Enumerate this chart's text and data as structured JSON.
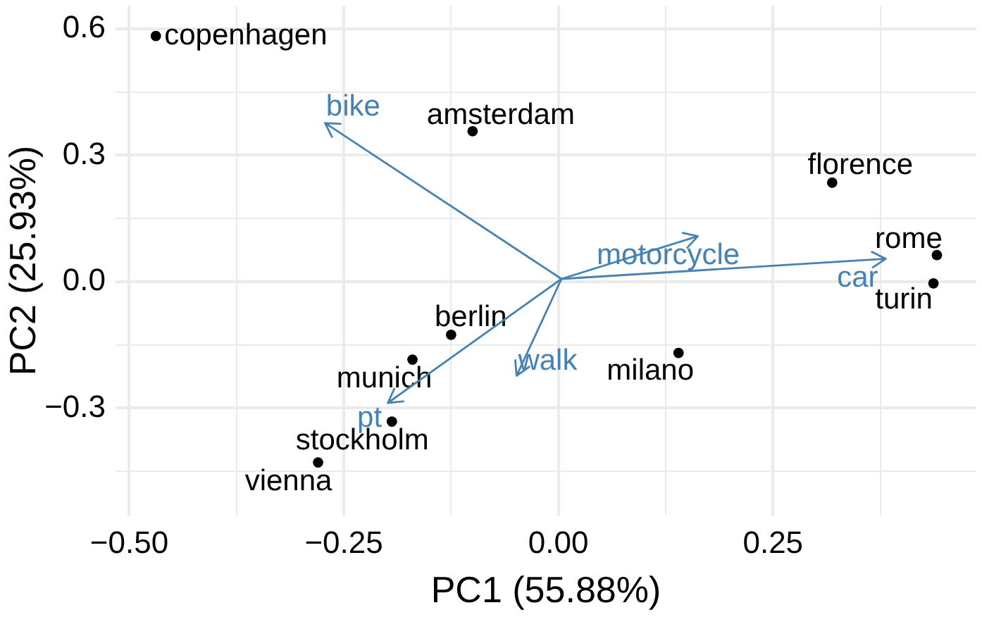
{
  "chart_data": {
    "type": "scatter",
    "xlabel": "PC1 (55.88%)",
    "ylabel": "PC2 (25.93%)",
    "xlim": [
      -0.516,
      0.487
    ],
    "ylim": [
      -0.555,
      0.655
    ],
    "xticks": [
      {
        "value": -0.5,
        "label": "−0.50"
      },
      {
        "value": -0.375,
        "label": null
      },
      {
        "value": -0.25,
        "label": "−0.25"
      },
      {
        "value": -0.125,
        "label": null
      },
      {
        "value": 0,
        "label": "0.00"
      },
      {
        "value": 0.125,
        "label": null
      },
      {
        "value": 0.25,
        "label": "0.25"
      },
      {
        "value": 0.375,
        "label": null
      }
    ],
    "yticks": [
      {
        "value": -0.45,
        "label": null
      },
      {
        "value": -0.3,
        "label": "−0.3"
      },
      {
        "value": -0.15,
        "label": null
      },
      {
        "value": 0,
        "label": "0.0"
      },
      {
        "value": 0.15,
        "label": null
      },
      {
        "value": 0.3,
        "label": "0.3"
      },
      {
        "value": 0.45,
        "label": null
      },
      {
        "value": 0.6,
        "label": "0.6"
      }
    ],
    "grid": true,
    "legend": false,
    "marker": "circle",
    "series": [
      {
        "color": "#000000",
        "x": [
          -0.469,
          -0.1,
          0.319,
          0.441,
          0.437,
          -0.125,
          -0.17,
          -0.194,
          -0.28,
          0.14
        ],
        "values": [
          0.583,
          0.357,
          0.235,
          0.063,
          -0.004,
          -0.126,
          -0.185,
          -0.332,
          -0.429,
          -0.169
        ],
        "value_labels": [
          "copenhagen",
          "amsterdam",
          "florence",
          "rome",
          "turin",
          "berlin",
          "munich",
          "stockholm",
          "vienna",
          "milano"
        ]
      }
    ],
    "annotations": [
      "bike",
      "motorcycle",
      "car",
      "walk",
      "pt"
    ]
  }
}
